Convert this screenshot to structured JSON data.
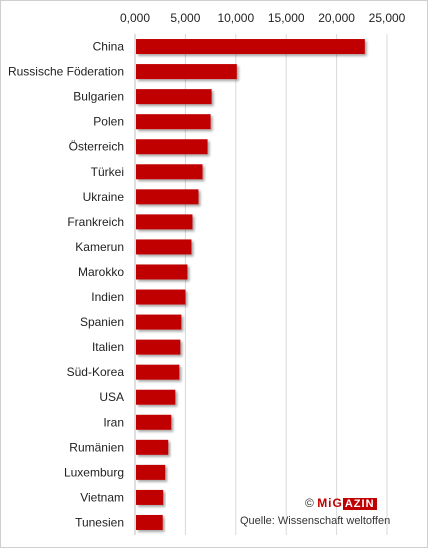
{
  "chart_data": {
    "type": "bar",
    "orientation": "horizontal",
    "title": "",
    "xlabel": "",
    "ylabel": "",
    "xlim": [
      0,
      25000
    ],
    "x_ticks": [
      0,
      5000,
      10000,
      15000,
      20000,
      25000
    ],
    "x_tick_labels": [
      "0,000",
      "5,000",
      "10,000",
      "15,000",
      "20,000",
      "25,000"
    ],
    "x_axis_position": "top",
    "grid": true,
    "legend": "none",
    "bar_color": "#c00000",
    "categories": [
      "China",
      "Russische Föderation",
      "Bulgarien",
      "Polen",
      "Österreich",
      "Türkei",
      "Ukraine",
      "Frankreich",
      "Kamerun",
      "Marokko",
      "Indien",
      "Spanien",
      "Italien",
      "Süd-Korea",
      "USA",
      "Iran",
      "Rumänien",
      "Luxemburg",
      "Vietnam",
      "Tunesien"
    ],
    "values": [
      22800,
      10100,
      7600,
      7500,
      7200,
      6700,
      6300,
      5700,
      5600,
      5200,
      5000,
      4600,
      4500,
      4400,
      4000,
      3600,
      3300,
      3000,
      2800,
      2750
    ]
  },
  "branding": {
    "copyright": "©",
    "logo_part1": "MiG",
    "logo_part2": "AZIN",
    "source": "Quelle: Wissenschaft weltoffen"
  }
}
